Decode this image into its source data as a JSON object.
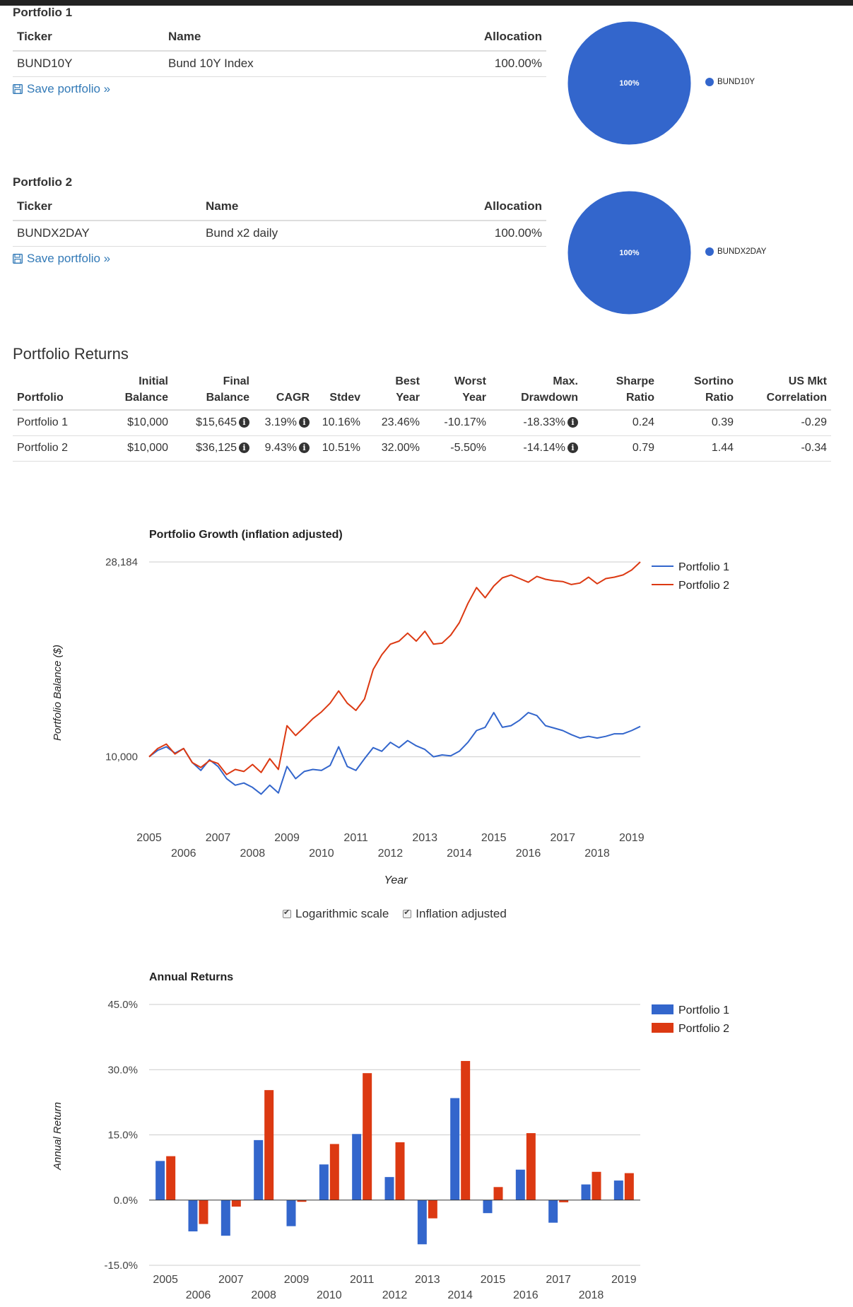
{
  "portfolios": [
    {
      "title": "Portfolio 1",
      "headers": {
        "ticker": "Ticker",
        "name": "Name",
        "allocation": "Allocation"
      },
      "rows": [
        {
          "ticker": "BUND10Y",
          "name": "Bund 10Y Index",
          "allocation": "100.00%"
        }
      ],
      "save_label": "Save portfolio »",
      "pie": {
        "label": "100%",
        "legend": "BUND10Y",
        "color": "#3366cc"
      }
    },
    {
      "title": "Portfolio 2",
      "headers": {
        "ticker": "Ticker",
        "name": "Name",
        "allocation": "Allocation"
      },
      "rows": [
        {
          "ticker": "BUNDX2DAY",
          "name": "Bund x2 daily",
          "allocation": "100.00%"
        }
      ],
      "save_label": "Save portfolio »",
      "pie": {
        "label": "100%",
        "legend": "BUNDX2DAY",
        "color": "#3366cc"
      }
    }
  ],
  "returns": {
    "title": "Portfolio Returns",
    "headers": {
      "portfolio": "Portfolio",
      "initial_1": "Initial",
      "initial_2": "Balance",
      "final_1": "Final",
      "final_2": "Balance",
      "cagr": "CAGR",
      "stdev": "Stdev",
      "best_1": "Best",
      "best_2": "Year",
      "worst_1": "Worst",
      "worst_2": "Year",
      "mdd_1": "Max.",
      "mdd_2": "Drawdown",
      "sharpe_1": "Sharpe",
      "sharpe_2": "Ratio",
      "sortino_1": "Sortino",
      "sortino_2": "Ratio",
      "corr_1": "US Mkt",
      "corr_2": "Correlation"
    },
    "rows": [
      {
        "portfolio": "Portfolio 1",
        "initial": "$10,000",
        "final": "$15,645",
        "cagr": "3.19%",
        "stdev": "10.16%",
        "best": "23.46%",
        "worst": "-10.17%",
        "mdd": "-18.33%",
        "sharpe": "0.24",
        "sortino": "0.39",
        "corr": "-0.29"
      },
      {
        "portfolio": "Portfolio 2",
        "initial": "$10,000",
        "final": "$36,125",
        "cagr": "9.43%",
        "stdev": "10.51%",
        "best": "32.00%",
        "worst": "-5.50%",
        "mdd": "-14.14%",
        "sharpe": "0.79",
        "sortino": "1.44",
        "corr": "-0.34"
      }
    ],
    "info_glyph": "i"
  },
  "growth_options": {
    "log_label": "Logarithmic scale",
    "log_checked": true,
    "infl_label": "Inflation adjusted",
    "infl_checked": true
  },
  "chart_data": [
    {
      "type": "line",
      "title": "Portfolio Growth (inflation adjusted)",
      "xlabel": "Year",
      "ylabel": "Portfolio Balance ($)",
      "y_scale": "log",
      "ylim": [
        8000,
        28184
      ],
      "yticks": [
        10000,
        28184
      ],
      "ytick_labels": [
        "10,000",
        "28,184"
      ],
      "xticks": [
        "2005",
        "2006",
        "2007",
        "2008",
        "2009",
        "2010",
        "2011",
        "2012",
        "2013",
        "2014",
        "2015",
        "2016",
        "2017",
        "2018",
        "2019"
      ],
      "xlim": [
        2005.0,
        2019.25
      ],
      "grid": true,
      "legend_position": "top-right",
      "colors": [
        "#3366cc",
        "#dc3912"
      ],
      "series": [
        {
          "name": "Portfolio 1",
          "x": [
            2005.0,
            2005.25,
            2005.5,
            2005.75,
            2006.0,
            2006.25,
            2006.5,
            2006.75,
            2007.0,
            2007.25,
            2007.5,
            2007.75,
            2008.0,
            2008.25,
            2008.5,
            2008.75,
            2009.0,
            2009.25,
            2009.5,
            2009.75,
            2010.0,
            2010.25,
            2010.5,
            2010.75,
            2011.0,
            2011.25,
            2011.5,
            2011.75,
            2012.0,
            2012.25,
            2012.5,
            2012.75,
            2013.0,
            2013.25,
            2013.5,
            2013.75,
            2014.0,
            2014.25,
            2014.5,
            2014.75,
            2015.0,
            2015.25,
            2015.5,
            2015.75,
            2016.0,
            2016.25,
            2016.5,
            2016.75,
            2017.0,
            2017.25,
            2017.5,
            2017.75,
            2018.0,
            2018.25,
            2018.5,
            2018.75,
            2019.0,
            2019.25
          ],
          "y": [
            10000,
            10350,
            10550,
            10200,
            10450,
            9700,
            9300,
            9850,
            9500,
            8900,
            8600,
            8700,
            8500,
            8200,
            8600,
            8250,
            9500,
            8900,
            9250,
            9350,
            9300,
            9550,
            10550,
            9500,
            9300,
            9900,
            10500,
            10300,
            10800,
            10500,
            10900,
            10600,
            10400,
            10000,
            10100,
            10050,
            10300,
            10800,
            11500,
            11700,
            12650,
            11700,
            11800,
            12150,
            12650,
            12450,
            11800,
            11650,
            11500,
            11250,
            11050,
            11150,
            11050,
            11150,
            11300,
            11300,
            11500,
            11750
          ]
        },
        {
          "name": "Portfolio 2",
          "x": [
            2005.0,
            2005.25,
            2005.5,
            2005.75,
            2006.0,
            2006.25,
            2006.5,
            2006.75,
            2007.0,
            2007.25,
            2007.5,
            2007.75,
            2008.0,
            2008.25,
            2008.5,
            2008.75,
            2009.0,
            2009.25,
            2009.5,
            2009.75,
            2010.0,
            2010.25,
            2010.5,
            2010.75,
            2011.0,
            2011.25,
            2011.5,
            2011.75,
            2012.0,
            2012.25,
            2012.5,
            2012.75,
            2013.0,
            2013.25,
            2013.5,
            2013.75,
            2014.0,
            2014.25,
            2014.5,
            2014.75,
            2015.0,
            2015.25,
            2015.5,
            2015.75,
            2016.0,
            2016.25,
            2016.5,
            2016.75,
            2017.0,
            2017.25,
            2017.5,
            2017.75,
            2018.0,
            2018.25,
            2018.5,
            2018.75,
            2019.0,
            2019.25
          ],
          "y": [
            10000,
            10450,
            10700,
            10150,
            10450,
            9700,
            9450,
            9800,
            9650,
            9100,
            9350,
            9250,
            9600,
            9200,
            9900,
            9350,
            11800,
            11200,
            11700,
            12250,
            12700,
            13300,
            14200,
            13300,
            12800,
            13600,
            15900,
            17200,
            18200,
            18500,
            19300,
            18500,
            19500,
            18200,
            18300,
            19100,
            20400,
            22600,
            24600,
            23300,
            24800,
            25900,
            26300,
            25800,
            25300,
            26100,
            25700,
            25500,
            25400,
            25000,
            25200,
            26000,
            25100,
            25800,
            26000,
            26300,
            27000,
            28184
          ]
        }
      ]
    },
    {
      "type": "bar",
      "title": "Annual Returns",
      "ylabel": "Annual Return",
      "ylim": [
        -15,
        45
      ],
      "yticks": [
        -15,
        0,
        15,
        30,
        45
      ],
      "ytick_labels": [
        "-15.0%",
        "0.0%",
        "15.0%",
        "30.0%",
        "45.0%"
      ],
      "categories": [
        "2005",
        "2006",
        "2007",
        "2008",
        "2009",
        "2010",
        "2011",
        "2012",
        "2013",
        "2014",
        "2015",
        "2016",
        "2017",
        "2018",
        "2019"
      ],
      "grid": true,
      "legend_position": "top-right",
      "colors": [
        "#3366cc",
        "#dc3912"
      ],
      "series": [
        {
          "name": "Portfolio 1",
          "values": [
            9.0,
            -7.2,
            -8.2,
            13.8,
            -6.0,
            8.2,
            15.2,
            5.3,
            -10.17,
            23.46,
            -3.0,
            7.0,
            -5.2,
            3.6,
            4.5
          ]
        },
        {
          "name": "Portfolio 2",
          "values": [
            10.1,
            -5.5,
            -1.5,
            25.3,
            -0.4,
            12.9,
            29.2,
            13.3,
            -4.2,
            32.0,
            3.0,
            15.4,
            -0.5,
            6.5,
            6.2
          ]
        }
      ]
    }
  ]
}
